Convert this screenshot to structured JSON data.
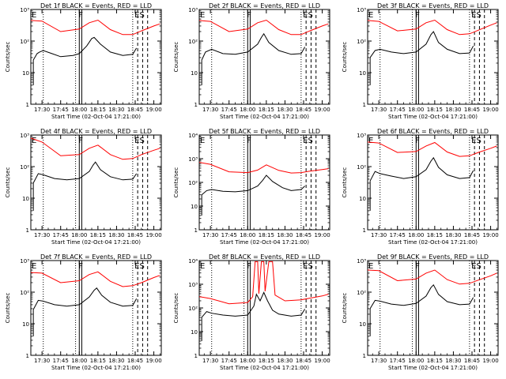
{
  "chart_data": {
    "type": "line",
    "layout": "3x3 grid",
    "title_suffix": " BLACK = Events, RED = LLD",
    "xlabel": "Start Time (02-Oct-04 17:21:00)",
    "ylabel": "Counts/sec",
    "y_scale": "log",
    "xlim": [
      "17:21",
      "19:06"
    ],
    "x_tick_labels": [
      "17:30",
      "17:45",
      "18:00",
      "18:15",
      "18:30",
      "18:45",
      "19:00"
    ],
    "marker_labels": {
      "E": "E",
      "F": "F",
      "ES": "ES"
    },
    "event_lines": {
      "dotted": [
        "17:31",
        "17:57",
        "18:43"
      ],
      "solid": [
        "18:00",
        "18:02"
      ],
      "dashed": [
        "18:47",
        "18:51",
        "18:55"
      ]
    },
    "colors": {
      "events": "#000000",
      "lld": "#ff0000"
    },
    "panels": [
      {
        "det": "Det 1f",
        "ylim": [
          1,
          1000
        ],
        "lld": [
          [
            "17:21",
            450
          ],
          [
            "17:30",
            430
          ],
          [
            "17:45",
            200
          ],
          [
            "18:00",
            240
          ],
          [
            "18:08",
            380
          ],
          [
            "18:15",
            460
          ],
          [
            "18:25",
            230
          ],
          [
            "18:35",
            160
          ],
          [
            "18:43",
            160
          ],
          [
            "18:50",
            210
          ],
          [
            "19:00",
            300
          ],
          [
            "19:05",
            350
          ]
        ],
        "events": [
          [
            "17:23",
            25
          ],
          [
            "17:26",
            40
          ],
          [
            "17:28",
            45
          ],
          [
            "17:31",
            50
          ],
          [
            "17:38",
            40
          ],
          [
            "17:45",
            32
          ],
          [
            "17:55",
            35
          ],
          [
            "18:00",
            40
          ],
          [
            "18:06",
            70
          ],
          [
            "18:10",
            120
          ],
          [
            "18:12",
            130
          ],
          [
            "18:17",
            80
          ],
          [
            "18:25",
            45
          ],
          [
            "18:35",
            35
          ],
          [
            "18:43",
            38
          ],
          [
            "18:46",
            60
          ]
        ]
      },
      {
        "det": "Det 2f",
        "ylim": [
          1,
          1000
        ],
        "lld": [
          [
            "17:21",
            450
          ],
          [
            "17:30",
            420
          ],
          [
            "17:45",
            200
          ],
          [
            "18:00",
            240
          ],
          [
            "18:08",
            380
          ],
          [
            "18:15",
            460
          ],
          [
            "18:25",
            230
          ],
          [
            "18:35",
            160
          ],
          [
            "18:43",
            160
          ],
          [
            "18:50",
            210
          ],
          [
            "19:00",
            300
          ],
          [
            "19:05",
            350
          ]
        ],
        "events": [
          [
            "17:23",
            25
          ],
          [
            "17:26",
            45
          ],
          [
            "17:31",
            55
          ],
          [
            "17:40",
            40
          ],
          [
            "17:50",
            38
          ],
          [
            "18:00",
            45
          ],
          [
            "18:08",
            80
          ],
          [
            "18:11",
            130
          ],
          [
            "18:13",
            170
          ],
          [
            "18:17",
            90
          ],
          [
            "18:25",
            50
          ],
          [
            "18:35",
            38
          ],
          [
            "18:43",
            40
          ],
          [
            "18:46",
            65
          ]
        ]
      },
      {
        "det": "Det 3f",
        "ylim": [
          1,
          1000
        ],
        "lld": [
          [
            "17:21",
            450
          ],
          [
            "17:30",
            420
          ],
          [
            "17:45",
            210
          ],
          [
            "18:00",
            240
          ],
          [
            "18:08",
            380
          ],
          [
            "18:15",
            460
          ],
          [
            "18:25",
            230
          ],
          [
            "18:35",
            160
          ],
          [
            "18:43",
            170
          ],
          [
            "18:50",
            220
          ],
          [
            "19:00",
            320
          ],
          [
            "19:05",
            380
          ]
        ],
        "events": [
          [
            "17:23",
            30
          ],
          [
            "17:27",
            50
          ],
          [
            "17:31",
            55
          ],
          [
            "17:40",
            45
          ],
          [
            "17:50",
            40
          ],
          [
            "18:00",
            45
          ],
          [
            "18:08",
            80
          ],
          [
            "18:12",
            160
          ],
          [
            "18:14",
            200
          ],
          [
            "18:18",
            90
          ],
          [
            "18:25",
            55
          ],
          [
            "18:35",
            40
          ],
          [
            "18:43",
            42
          ],
          [
            "18:46",
            70
          ]
        ]
      },
      {
        "det": "Det 4f",
        "ylim": [
          1,
          1000
        ],
        "lld": [
          [
            "17:21",
            800
          ],
          [
            "17:30",
            600
          ],
          [
            "17:45",
            220
          ],
          [
            "18:00",
            240
          ],
          [
            "18:08",
            380
          ],
          [
            "18:15",
            480
          ],
          [
            "18:25",
            240
          ],
          [
            "18:35",
            170
          ],
          [
            "18:43",
            180
          ],
          [
            "18:50",
            240
          ],
          [
            "19:00",
            330
          ],
          [
            "19:05",
            380
          ]
        ],
        "events": [
          [
            "17:23",
            30
          ],
          [
            "17:27",
            60
          ],
          [
            "17:31",
            55
          ],
          [
            "17:40",
            42
          ],
          [
            "17:50",
            38
          ],
          [
            "18:00",
            42
          ],
          [
            "18:08",
            70
          ],
          [
            "18:11",
            110
          ],
          [
            "18:13",
            140
          ],
          [
            "18:17",
            80
          ],
          [
            "18:25",
            48
          ],
          [
            "18:35",
            38
          ],
          [
            "18:43",
            40
          ],
          [
            "18:46",
            60
          ]
        ]
      },
      {
        "det": "Det 5f",
        "ylim": [
          1,
          10000
        ],
        "lld": [
          [
            "17:21",
            700
          ],
          [
            "17:30",
            580
          ],
          [
            "17:45",
            280
          ],
          [
            "18:00",
            260
          ],
          [
            "18:08",
            330
          ],
          [
            "18:15",
            550
          ],
          [
            "18:25",
            320
          ],
          [
            "18:35",
            250
          ],
          [
            "18:43",
            260
          ],
          [
            "18:50",
            300
          ],
          [
            "19:00",
            350
          ],
          [
            "19:05",
            380
          ]
        ],
        "events": [
          [
            "17:23",
            30
          ],
          [
            "17:27",
            45
          ],
          [
            "17:31",
            50
          ],
          [
            "17:40",
            42
          ],
          [
            "17:50",
            40
          ],
          [
            "18:00",
            45
          ],
          [
            "18:08",
            70
          ],
          [
            "18:12",
            120
          ],
          [
            "18:15",
            200
          ],
          [
            "18:20",
            110
          ],
          [
            "18:28",
            60
          ],
          [
            "18:35",
            45
          ],
          [
            "18:43",
            50
          ],
          [
            "18:46",
            70
          ]
        ]
      },
      {
        "det": "Det 6f",
        "ylim": [
          1,
          1000
        ],
        "lld": [
          [
            "17:21",
            600
          ],
          [
            "17:30",
            560
          ],
          [
            "17:45",
            280
          ],
          [
            "18:00",
            300
          ],
          [
            "18:08",
            450
          ],
          [
            "18:15",
            580
          ],
          [
            "18:25",
            290
          ],
          [
            "18:35",
            210
          ],
          [
            "18:43",
            220
          ],
          [
            "18:50",
            280
          ],
          [
            "19:00",
            380
          ],
          [
            "19:05",
            450
          ]
        ],
        "events": [
          [
            "17:23",
            35
          ],
          [
            "17:27",
            70
          ],
          [
            "17:31",
            60
          ],
          [
            "17:40",
            50
          ],
          [
            "17:50",
            42
          ],
          [
            "18:00",
            48
          ],
          [
            "18:08",
            80
          ],
          [
            "18:12",
            150
          ],
          [
            "18:14",
            190
          ],
          [
            "18:18",
            95
          ],
          [
            "18:25",
            55
          ],
          [
            "18:35",
            42
          ],
          [
            "18:43",
            45
          ],
          [
            "18:46",
            75
          ]
        ]
      },
      {
        "det": "Det 7f",
        "ylim": [
          1,
          1000
        ],
        "lld": [
          [
            "17:21",
            420
          ],
          [
            "17:30",
            400
          ],
          [
            "17:45",
            200
          ],
          [
            "18:00",
            230
          ],
          [
            "18:08",
            360
          ],
          [
            "18:15",
            440
          ],
          [
            "18:25",
            220
          ],
          [
            "18:35",
            150
          ],
          [
            "18:43",
            160
          ],
          [
            "18:50",
            200
          ],
          [
            "19:00",
            290
          ],
          [
            "19:05",
            340
          ]
        ],
        "events": [
          [
            "17:23",
            28
          ],
          [
            "17:27",
            55
          ],
          [
            "17:31",
            52
          ],
          [
            "17:40",
            40
          ],
          [
            "17:50",
            36
          ],
          [
            "18:00",
            40
          ],
          [
            "18:08",
            70
          ],
          [
            "18:12",
            115
          ],
          [
            "18:14",
            135
          ],
          [
            "18:18",
            80
          ],
          [
            "18:25",
            48
          ],
          [
            "18:35",
            36
          ],
          [
            "18:43",
            38
          ],
          [
            "18:46",
            62
          ]
        ]
      },
      {
        "det": "Det 8f",
        "ylim": [
          1,
          10000
        ],
        "lld": [
          [
            "17:21",
            300
          ],
          [
            "17:30",
            250
          ],
          [
            "17:45",
            150
          ],
          [
            "18:00",
            170
          ],
          [
            "18:04",
            300
          ],
          [
            "18:06",
            9000
          ],
          [
            "18:08",
            9000
          ],
          [
            "18:09",
            400
          ],
          [
            "18:11",
            9000
          ],
          [
            "18:13",
            9000
          ],
          [
            "18:14",
            500
          ],
          [
            "18:17",
            9000
          ],
          [
            "18:20",
            9000
          ],
          [
            "18:22",
            350
          ],
          [
            "18:30",
            200
          ],
          [
            "18:43",
            220
          ],
          [
            "18:50",
            260
          ],
          [
            "19:00",
            320
          ],
          [
            "19:05",
            380
          ]
        ],
        "events": [
          [
            "17:23",
            40
          ],
          [
            "17:27",
            70
          ],
          [
            "17:31",
            60
          ],
          [
            "17:40",
            50
          ],
          [
            "17:50",
            45
          ],
          [
            "18:00",
            50
          ],
          [
            "18:05",
            120
          ],
          [
            "18:07",
            380
          ],
          [
            "18:10",
            200
          ],
          [
            "18:13",
            450
          ],
          [
            "18:16",
            200
          ],
          [
            "18:20",
            80
          ],
          [
            "18:25",
            55
          ],
          [
            "18:35",
            45
          ],
          [
            "18:43",
            50
          ],
          [
            "18:46",
            90
          ]
        ]
      },
      {
        "det": "Det 9f",
        "ylim": [
          1,
          1000
        ],
        "lld": [
          [
            "17:21",
            500
          ],
          [
            "17:30",
            480
          ],
          [
            "17:45",
            230
          ],
          [
            "18:00",
            260
          ],
          [
            "18:08",
            400
          ],
          [
            "18:15",
            500
          ],
          [
            "18:25",
            250
          ],
          [
            "18:35",
            180
          ],
          [
            "18:43",
            190
          ],
          [
            "18:50",
            240
          ],
          [
            "19:00",
            330
          ],
          [
            "19:05",
            400
          ]
        ],
        "events": [
          [
            "17:23",
            30
          ],
          [
            "17:27",
            55
          ],
          [
            "17:31",
            52
          ],
          [
            "17:40",
            42
          ],
          [
            "17:50",
            38
          ],
          [
            "18:00",
            44
          ],
          [
            "18:08",
            75
          ],
          [
            "18:12",
            140
          ],
          [
            "18:14",
            170
          ],
          [
            "18:18",
            85
          ],
          [
            "18:25",
            50
          ],
          [
            "18:35",
            40
          ],
          [
            "18:43",
            42
          ],
          [
            "18:46",
            68
          ]
        ]
      }
    ]
  }
}
